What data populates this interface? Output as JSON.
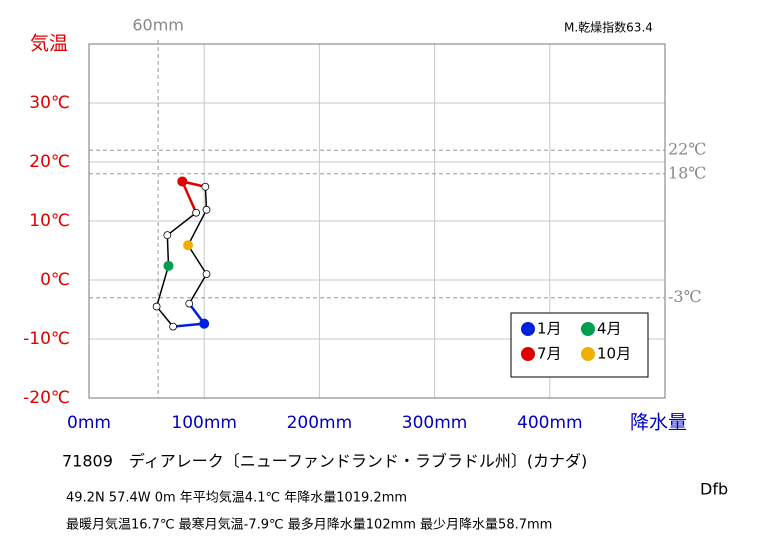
{
  "chart_data": {
    "type": "climograph",
    "index_label": "M.乾燥指数63.4",
    "y_label": "気温",
    "x_label": "降水量",
    "station": "71809　ディアレーク〔ニューファンドランド・ラブラドル州〕(カナダ)",
    "climate_class": "Dfb",
    "info_line1": "49.2N  57.4W 0m  年平均気温4.1℃ 年降水量1019.2mm",
    "info_line2": "最暖月気温16.7℃ 最寒月気温-7.9℃ 最多月降水量102mm 最少月降水量58.7mm",
    "x": [
      100,
      73,
      58.7,
      69,
      68,
      93,
      81,
      101,
      102,
      86,
      102,
      87
    ],
    "y": [
      -7.4,
      -7.9,
      -4.5,
      2.4,
      7.6,
      11.4,
      16.7,
      15.8,
      11.9,
      5.9,
      1.0,
      -4.0
    ],
    "point_colors": [
      "#0020e0",
      "#ffffff",
      "#ffffff",
      "#00a050",
      "#ffffff",
      "#ffffff",
      "#e00000",
      "#ffffff",
      "#ffffff",
      "#f0b000",
      "#ffffff",
      "#ffffff"
    ],
    "segment_colors": [
      "#0020e0",
      "#000000",
      "#000000",
      "#000000",
      "#000000",
      "#e00000",
      "#e00000",
      "#000000",
      "#000000",
      "#000000",
      "#000000",
      "#0020e0"
    ],
    "legend": [
      {
        "label": "1月",
        "color": "#0020e0"
      },
      {
        "label": "4月",
        "color": "#00a050"
      },
      {
        "label": "7月",
        "color": "#e00000"
      },
      {
        "label": "10月",
        "color": "#f0b000"
      }
    ],
    "xlim": [
      0,
      500
    ],
    "ylim": [
      -20,
      40
    ],
    "xticks": [
      {
        "value": 0,
        "label": "0mm"
      },
      {
        "value": 100,
        "label": "100mm"
      },
      {
        "value": 200,
        "label": "200mm"
      },
      {
        "value": 300,
        "label": "300mm"
      },
      {
        "value": 400,
        "label": "400mm"
      }
    ],
    "yticks": [
      {
        "value": -20,
        "label": "-20℃"
      },
      {
        "value": -10,
        "label": "-10℃"
      },
      {
        "value": 0,
        "label": "0℃"
      },
      {
        "value": 10,
        "label": "10℃"
      },
      {
        "value": 20,
        "label": "20℃"
      },
      {
        "value": 30,
        "label": "30℃"
      }
    ],
    "x_refs": [
      {
        "value": 60,
        "label": "60mm"
      }
    ],
    "y_refs": [
      {
        "value": 22,
        "label": "22℃"
      },
      {
        "value": 18,
        "label": "18℃"
      },
      {
        "value": -3,
        "label": "-3℃"
      }
    ],
    "grid": true
  }
}
